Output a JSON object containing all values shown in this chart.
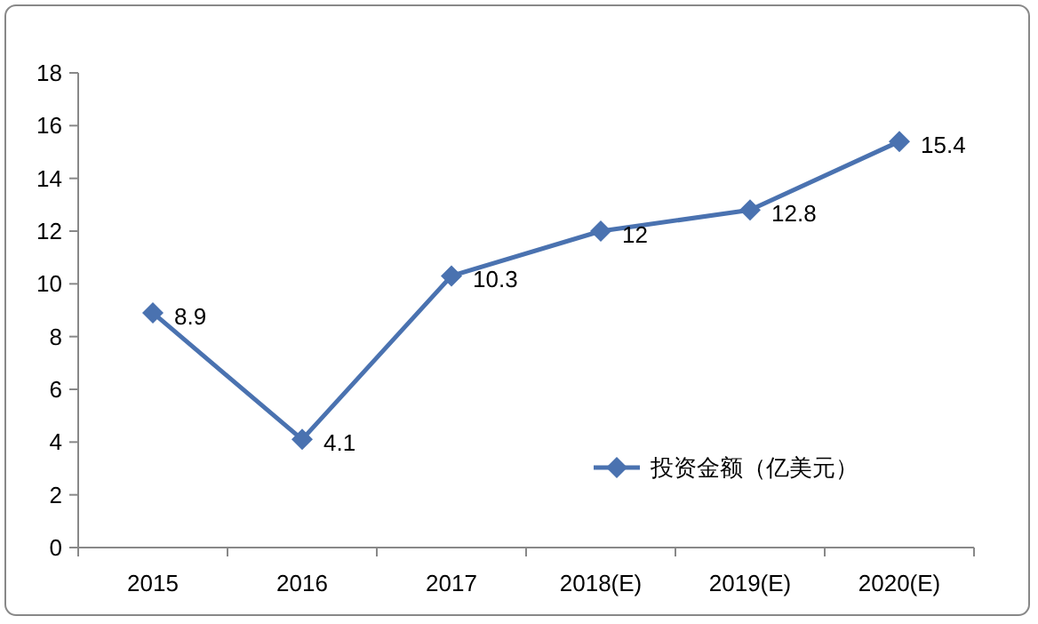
{
  "chart_data": {
    "type": "line",
    "categories": [
      "2015",
      "2016",
      "2017",
      "2018(E)",
      "2019(E)",
      "2020(E)"
    ],
    "series": [
      {
        "name": "投资金额（亿美元）",
        "color": "#4a72b0",
        "values": [
          8.9,
          4.1,
          10.3,
          12,
          12.8,
          15.4
        ]
      }
    ],
    "ylim": [
      0,
      18
    ],
    "yticks": [
      0,
      2,
      4,
      6,
      8,
      10,
      12,
      14,
      16,
      18
    ],
    "data_labels": true,
    "marker": "diamond",
    "legend": "bottom right",
    "grid": false
  }
}
